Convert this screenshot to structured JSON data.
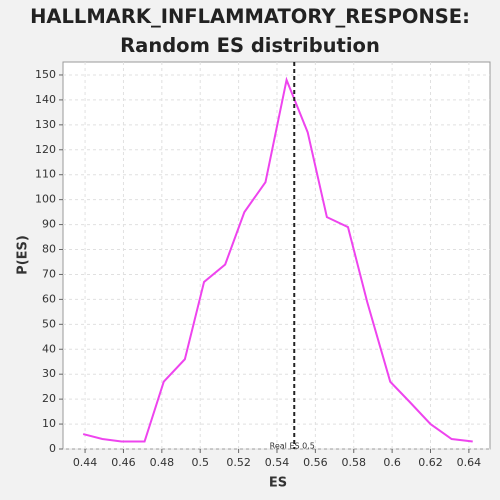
{
  "chart_data": {
    "type": "line",
    "title": "HALLMARK_INFLAMMATORY_RESPONSE: Random ES distribution",
    "xlabel": "ES",
    "ylabel": "P(ES)",
    "x": [
      0.439,
      0.449,
      0.459,
      0.471,
      0.481,
      0.492,
      0.502,
      0.513,
      0.523,
      0.534,
      0.545,
      0.556,
      0.566,
      0.577,
      0.587,
      0.599,
      0.609,
      0.62,
      0.631,
      0.642
    ],
    "series": [
      {
        "name": "P(ES)",
        "color": "#ee44ee",
        "values": [
          6,
          4,
          3,
          3,
          27,
          36,
          67,
          74,
          95,
          107,
          148,
          127,
          93,
          89,
          59,
          27,
          19,
          10,
          4,
          3
        ]
      }
    ],
    "xlim": [
      0.4285,
      0.651
    ],
    "ylim": [
      0,
      155.2
    ],
    "xticks": [
      0.44,
      0.46,
      0.48,
      0.5,
      0.52,
      0.54,
      0.56,
      0.58,
      0.6,
      0.62,
      0.64
    ],
    "yticks": [
      0,
      10,
      20,
      30,
      40,
      50,
      60,
      70,
      80,
      90,
      100,
      110,
      120,
      130,
      140,
      150
    ],
    "grid": true,
    "annotation": {
      "value": 0.549,
      "label": "Real ES 0.5"
    }
  }
}
